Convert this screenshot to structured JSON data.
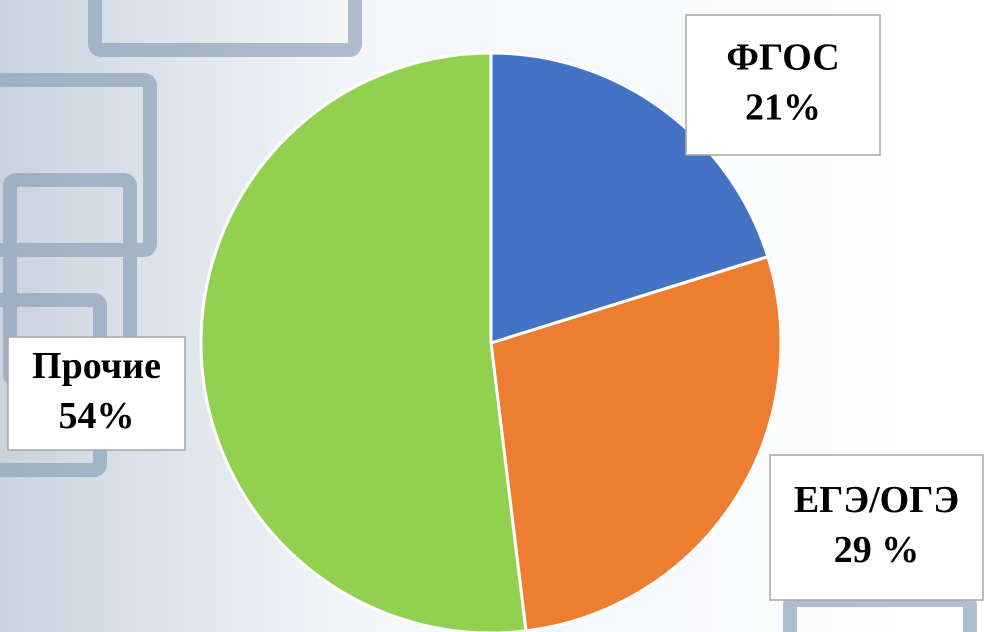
{
  "chart_data": {
    "type": "pie",
    "categories": [
      "ФГОС",
      "ЕГЭ/ОГЭ",
      "Прочие"
    ],
    "values": [
      21,
      29,
      54
    ],
    "value_labels": [
      "21%",
      "29 %",
      "54%"
    ],
    "colors": [
      "#4472c4",
      "#ed7d31",
      "#92d050"
    ]
  }
}
